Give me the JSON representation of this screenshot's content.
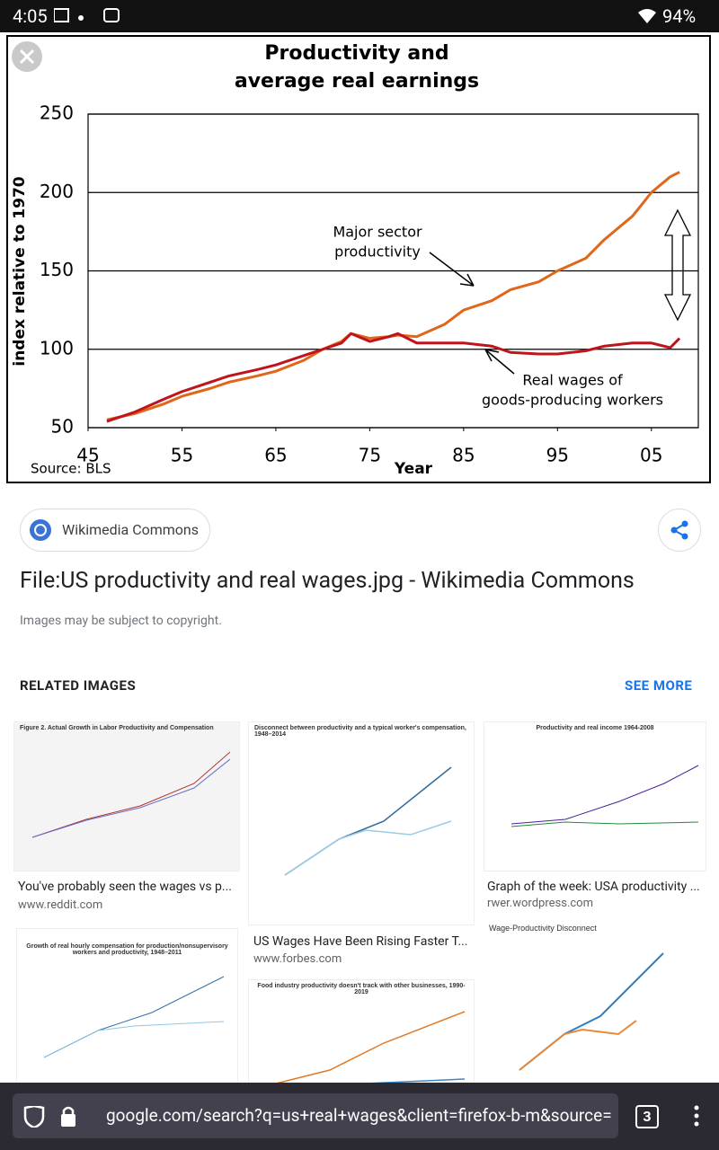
{
  "status_bar": {
    "time": "4:05",
    "battery": "94%"
  },
  "chart": {
    "type": "line",
    "title": [
      "Productivity and",
      "average real earnings"
    ],
    "y_label": "index relative to 1970",
    "x_label": "Year",
    "source": "Source: BLS",
    "annotations": [
      [
        "Major sector",
        "productivity"
      ],
      [
        "Real wages of",
        "goods-producing workers"
      ]
    ],
    "x": [
      47,
      50,
      53,
      55,
      58,
      60,
      63,
      65,
      68,
      70,
      72,
      73,
      75,
      77,
      78,
      80,
      83,
      85,
      88,
      90,
      93,
      95,
      98,
      100,
      103,
      105,
      107,
      108
    ],
    "series": [
      {
        "name": "Major sector productivity",
        "color": "#e0661a",
        "values": [
          55,
          59,
          65,
          70,
          75,
          79,
          83,
          86,
          93,
          100,
          105,
          110,
          107,
          108,
          109,
          108,
          116,
          125,
          131,
          138,
          143,
          150,
          158,
          170,
          185,
          200,
          210,
          213
        ]
      },
      {
        "name": "Real wages of goods-producing workers",
        "color": "#c0141c",
        "values": [
          54,
          60,
          68,
          73,
          79,
          83,
          87,
          90,
          96,
          100,
          104,
          110,
          105,
          108,
          110,
          104,
          104,
          104,
          102,
          98,
          97,
          97,
          99,
          102,
          104,
          104,
          101,
          107
        ]
      }
    ],
    "xlim": [
      45,
      110
    ],
    "xticks": [
      45,
      55,
      65,
      75,
      85,
      95,
      {
        "value": 105,
        "label": "05"
      }
    ],
    "ylim": [
      50,
      250
    ],
    "yticks": [
      50,
      100,
      150,
      200,
      250
    ],
    "grid": true
  },
  "source_chip": "Wikimedia Commons",
  "result_title": "File:US productivity and real wages.jpg - Wikimedia Commons",
  "copyright": "Images may be subject to copyright.",
  "related": {
    "heading": "RELATED IMAGES",
    "see_more": "SEE MORE",
    "items": [
      {
        "thumb_title": "Figure 2. Actual Growth in Labor Productivity and Compensation",
        "caption": "You've probably seen the wages vs p...",
        "site": "www.reddit.com"
      },
      {
        "thumb_title": "Disconnect between productivity and a typical worker's compensation, 1948–2014",
        "caption": "US Wages Have Been Rising Faster T...",
        "site": "www.forbes.com"
      },
      {
        "thumb_title": "Productivity and real income 1964-2008",
        "caption": "Graph of the week: USA productivity ...",
        "site": "rwer.wordpress.com"
      },
      {
        "thumb_title": "Growth of real hourly compensation for production/nonsupervisory workers and productivity, 1948–2011"
      },
      {
        "thumb_title": "Food industry productivity doesn't track with other businesses, 1990-2019"
      },
      {
        "thumb_title": "Wage-Productivity Disconnect"
      }
    ]
  },
  "url_bar": {
    "url": "google.com/search?q=us+real+wages&client=firefox-b-m&source=",
    "tabs": "3"
  }
}
